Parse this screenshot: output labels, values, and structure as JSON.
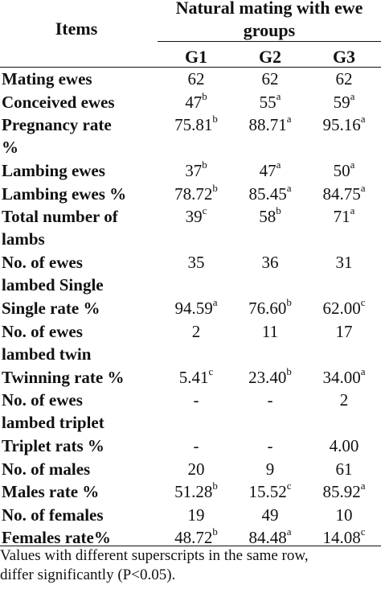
{
  "header": {
    "items_label": "Items",
    "main_line1": "Natural mating with ewe",
    "main_line2": "groups",
    "groups": [
      "G1",
      "G2",
      "G3"
    ]
  },
  "rows": [
    {
      "label": [
        "Mating ewes"
      ],
      "cells": [
        {
          "v": "62",
          "s": ""
        },
        {
          "v": "62",
          "s": ""
        },
        {
          "v": "62",
          "s": ""
        }
      ]
    },
    {
      "label": [
        "Conceived ewes"
      ],
      "cells": [
        {
          "v": "47",
          "s": "b"
        },
        {
          "v": "55",
          "s": "a"
        },
        {
          "v": "59",
          "s": "a"
        }
      ]
    },
    {
      "label": [
        "Pregnancy rate",
        "%"
      ],
      "cells": [
        {
          "v": "75.81",
          "s": "b"
        },
        {
          "v": "88.71",
          "s": "a"
        },
        {
          "v": "95.16",
          "s": "a"
        }
      ]
    },
    {
      "label": [
        "Lambing ewes"
      ],
      "cells": [
        {
          "v": "37",
          "s": "b"
        },
        {
          "v": "47",
          "s": "a"
        },
        {
          "v": "50",
          "s": "a"
        }
      ]
    },
    {
      "label": [
        "Lambing ewes %"
      ],
      "cells": [
        {
          "v": "78.72",
          "s": "b"
        },
        {
          "v": "85.45",
          "s": "a"
        },
        {
          "v": "84.75",
          "s": "a"
        }
      ]
    },
    {
      "label": [
        "Total number of",
        "lambs"
      ],
      "cells": [
        {
          "v": "39",
          "s": "c"
        },
        {
          "v": "58",
          "s": "b"
        },
        {
          "v": "71",
          "s": "a"
        }
      ]
    },
    {
      "label": [
        "No. of ewes",
        "lambed Single"
      ],
      "cells": [
        {
          "v": "35",
          "s": ""
        },
        {
          "v": "36",
          "s": ""
        },
        {
          "v": "31",
          "s": ""
        }
      ]
    },
    {
      "label": [
        "Single rate %"
      ],
      "cells": [
        {
          "v": "94.59",
          "s": "a"
        },
        {
          "v": "76.60",
          "s": "b"
        },
        {
          "v": "62.00",
          "s": "c"
        }
      ]
    },
    {
      "label": [
        "No. of ewes",
        "lambed twin"
      ],
      "cells": [
        {
          "v": "2",
          "s": ""
        },
        {
          "v": "11",
          "s": ""
        },
        {
          "v": "17",
          "s": ""
        }
      ]
    },
    {
      "label": [
        "Twinning rate %"
      ],
      "cells": [
        {
          "v": "5.41",
          "s": "c"
        },
        {
          "v": "23.40",
          "s": "b"
        },
        {
          "v": "34.00",
          "s": "a"
        }
      ]
    },
    {
      "label": [
        "No. of ewes",
        "lambed triplet"
      ],
      "cells": [
        {
          "v": "-",
          "s": ""
        },
        {
          "v": "-",
          "s": ""
        },
        {
          "v": "2",
          "s": ""
        }
      ]
    },
    {
      "label": [
        "Triplet rats %"
      ],
      "cells": [
        {
          "v": "-",
          "s": ""
        },
        {
          "v": "-",
          "s": ""
        },
        {
          "v": "4.00",
          "s": ""
        }
      ]
    },
    {
      "label": [
        "No. of males"
      ],
      "cells": [
        {
          "v": "20",
          "s": ""
        },
        {
          "v": "9",
          "s": ""
        },
        {
          "v": "61",
          "s": ""
        }
      ]
    },
    {
      "label": [
        "Males rate %"
      ],
      "cells": [
        {
          "v": "51.28",
          "s": "b"
        },
        {
          "v": "15.52",
          "s": "c"
        },
        {
          "v": "85.92",
          "s": "a"
        }
      ]
    },
    {
      "label": [
        "No. of females"
      ],
      "cells": [
        {
          "v": "19",
          "s": ""
        },
        {
          "v": "49",
          "s": ""
        },
        {
          "v": "10",
          "s": ""
        }
      ]
    },
    {
      "label": [
        "Females  rate%"
      ],
      "cells": [
        {
          "v": "48.72",
          "s": "b"
        },
        {
          "v": "84.48",
          "s": "a"
        },
        {
          "v": "14.08",
          "s": "c"
        }
      ]
    }
  ],
  "footnote": [
    "Values with different superscripts in the same row,",
    "differ significantly (P<0.05)."
  ]
}
